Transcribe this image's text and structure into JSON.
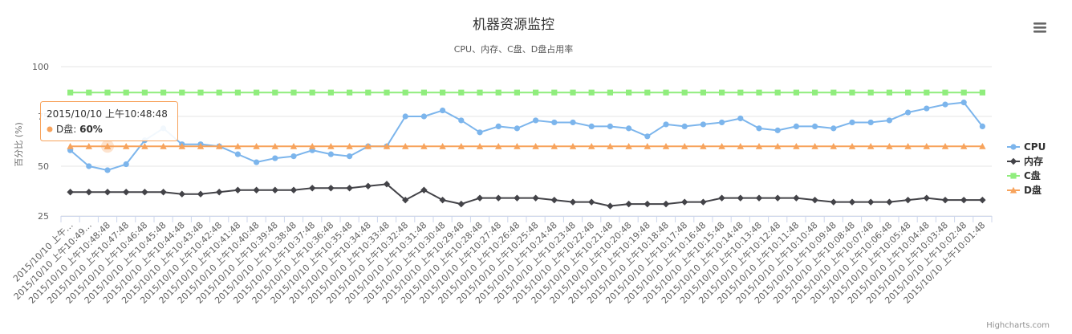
{
  "chart_data": {
    "type": "line",
    "title": "机器资源监控",
    "subtitle": "CPU、内存、C盘、D盘占用率",
    "ylabel": "百分比 (%)",
    "ylim": [
      25,
      100
    ],
    "yticks": [
      25,
      50,
      75,
      100
    ],
    "grid": true,
    "legend": "right",
    "categories": [
      "2015/10/10 上午…",
      "2015/10/10 上午10:49…",
      "2015/10/10 上午10:48:48",
      "2015/10/10 上午10:47:48",
      "2015/10/10 上午10:46:48",
      "2015/10/10 上午10:45:48",
      "2015/10/10 上午10:44:48",
      "2015/10/10 上午10:43:48",
      "2015/10/10 上午10:42:48",
      "2015/10/10 上午10:41:48",
      "2015/10/10 上午10:40:48",
      "2015/10/10 上午10:39:48",
      "2015/10/10 上午10:38:48",
      "2015/10/10 上午10:37:48",
      "2015/10/10 上午10:36:48",
      "2015/10/10 上午10:35:48",
      "2015/10/10 上午10:34:48",
      "2015/10/10 上午10:33:48",
      "2015/10/10 上午10:32:48",
      "2015/10/10 上午10:31:48",
      "2015/10/10 上午10:30:48",
      "2015/10/10 上午10:29:48",
      "2015/10/10 上午10:28:48",
      "2015/10/10 上午10:27:48",
      "2015/10/10 上午10:26:48",
      "2015/10/10 上午10:25:48",
      "2015/10/10 上午10:24:48",
      "2015/10/10 上午10:23:48",
      "2015/10/10 上午10:22:48",
      "2015/10/10 上午10:21:48",
      "2015/10/10 上午10:20:48",
      "2015/10/10 上午10:19:48",
      "2015/10/10 上午10:18:48",
      "2015/10/10 上午10:17:48",
      "2015/10/10 上午10:16:48",
      "2015/10/10 上午10:15:48",
      "2015/10/10 上午10:14:48",
      "2015/10/10 上午10:13:48",
      "2015/10/10 上午10:12:48",
      "2015/10/10 上午10:11:48",
      "2015/10/10 上午10:10:48",
      "2015/10/10 上午10:09:48",
      "2015/10/10 上午10:08:48",
      "2015/10/10 上午10:07:48",
      "2015/10/10 上午10:06:48",
      "2015/10/10 上午10:05:48",
      "2015/10/10 上午10:04:48",
      "2015/10/10 上午10:03:48",
      "2015/10/10 上午10:02:48",
      "2015/10/10 上午10:01:48"
    ],
    "series": [
      {
        "name": "CPU",
        "color": "#7cb5ec",
        "marker": "circle",
        "values": [
          58,
          50,
          48,
          51,
          63,
          69,
          61,
          61,
          60,
          56,
          52,
          54,
          55,
          58,
          56,
          55,
          60,
          60,
          75,
          75,
          78,
          73,
          67,
          70,
          69,
          73,
          72,
          72,
          70,
          70,
          69,
          65,
          71,
          70,
          71,
          72,
          74,
          69,
          68,
          70,
          70,
          69,
          72,
          72,
          73,
          77,
          79,
          81,
          82,
          70
        ]
      },
      {
        "name": "内存",
        "color": "#434348",
        "marker": "diamond",
        "values": [
          37,
          37,
          37,
          37,
          37,
          37,
          36,
          36,
          37,
          38,
          38,
          38,
          38,
          39,
          39,
          39,
          40,
          41,
          33,
          38,
          33,
          31,
          34,
          34,
          34,
          34,
          33,
          32,
          32,
          30,
          31,
          31,
          31,
          32,
          32,
          34,
          34,
          34,
          34,
          34,
          33,
          32,
          32,
          32,
          32,
          33,
          34,
          33,
          33,
          33
        ]
      },
      {
        "name": "C盘",
        "color": "#90ed7d",
        "marker": "square",
        "values": [
          87,
          87,
          87,
          87,
          87,
          87,
          87,
          87,
          87,
          87,
          87,
          87,
          87,
          87,
          87,
          87,
          87,
          87,
          87,
          87,
          87,
          87,
          87,
          87,
          87,
          87,
          87,
          87,
          87,
          87,
          87,
          87,
          87,
          87,
          87,
          87,
          87,
          87,
          87,
          87,
          87,
          87,
          87,
          87,
          87,
          87,
          87,
          87,
          87,
          87
        ]
      },
      {
        "name": "D盘",
        "color": "#f7a35c",
        "marker": "triangle",
        "values": [
          60,
          60,
          60,
          60,
          60,
          60,
          60,
          60,
          60,
          60,
          60,
          60,
          60,
          60,
          60,
          60,
          60,
          60,
          60,
          60,
          60,
          60,
          60,
          60,
          60,
          60,
          60,
          60,
          60,
          60,
          60,
          60,
          60,
          60,
          60,
          60,
          60,
          60,
          60,
          60,
          60,
          60,
          60,
          60,
          60,
          60,
          60,
          60,
          60,
          60
        ]
      }
    ],
    "tooltip": {
      "header": "2015/10/10 上午10:48:48",
      "series": "D盘",
      "value_text": "60%",
      "index": 2
    },
    "credits": "Highcharts.com"
  },
  "menu": {
    "icon": "hamburger-menu-icon"
  }
}
